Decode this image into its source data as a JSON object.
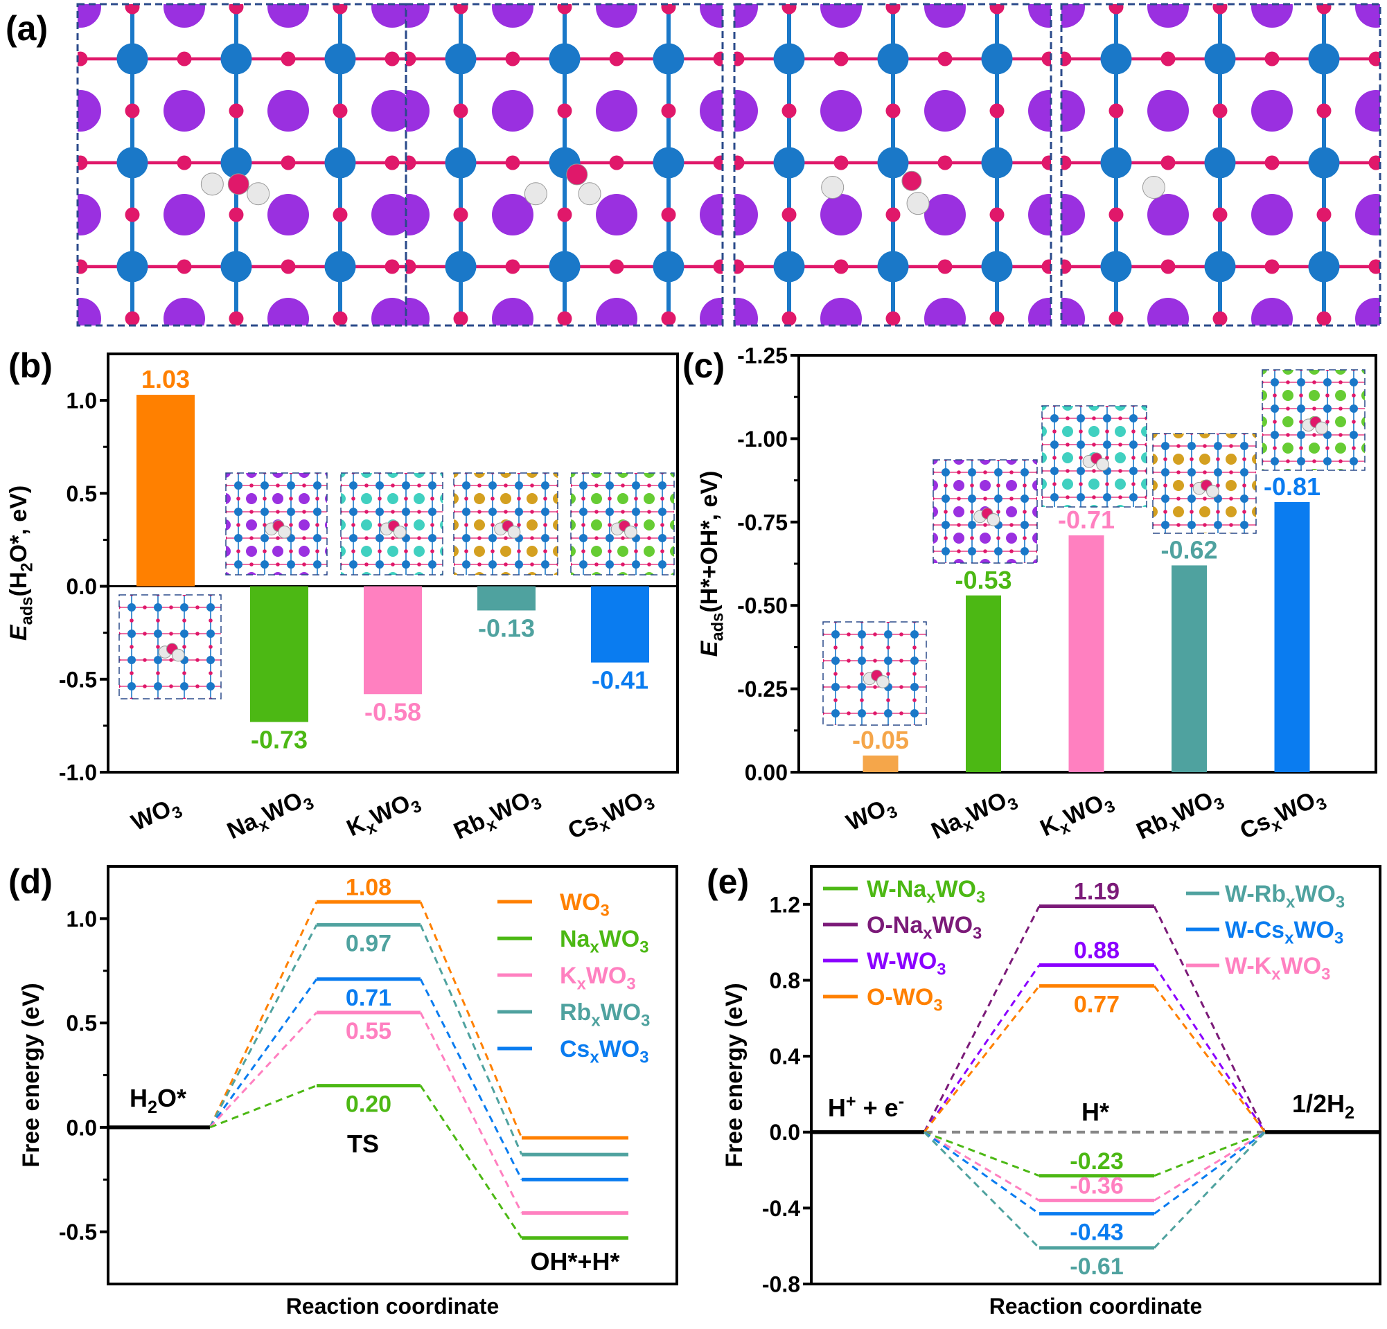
{
  "panel_labels": {
    "a": "(a)",
    "b": "(b)",
    "c": "(c)",
    "d": "(d)",
    "e": "(e)"
  },
  "colors": {
    "WO3": "#ff8000",
    "NaxWO3": "#4cb814",
    "KxWO3": "#ff80c0",
    "RbxWO3": "#4fa29f",
    "CsxWO3": "#0a7cf0",
    "WO3_light": "#f5a64a",
    "O_NaxWO3": "#7b1a78",
    "W_WO3": "#8a00ff",
    "zero_ref": "#888888",
    "W_atom": "#1a78c8",
    "O_atom": "#e0186a",
    "K_atom": "#9a30e0",
    "H_atom": "#e8e8e8",
    "Na_cation": "#9a30e0",
    "K_cation": "#40d0c0",
    "Rb_cation": "#d4a020",
    "Cs_cation": "#66cc33"
  },
  "structures_a": {
    "description_icons": [
      "lattice-frame-1",
      "lattice-frame-2",
      "lattice-frame-3",
      "lattice-frame-4"
    ]
  },
  "chart_data": [
    {
      "id": "b",
      "type": "bar",
      "categories": [
        "WO3",
        "NaxWO3",
        "KxWO3",
        "RbxWO3",
        "CsxWO3"
      ],
      "values": [
        1.03,
        -0.73,
        -0.58,
        -0.13,
        -0.41
      ],
      "value_labels": [
        "1.03",
        "-0.73",
        "-0.58",
        "-0.13",
        "-0.41"
      ],
      "ylabel": "Eads(H2O*, eV)",
      "ylim": [
        -1.0,
        1.25
      ],
      "yticks": [
        1.0,
        0.5,
        0.0,
        -0.5,
        -1.0
      ],
      "ytick_labels": [
        "1.0",
        "0.5",
        "0.0",
        "-0.5",
        "-1.0"
      ],
      "grid": false
    },
    {
      "id": "c",
      "type": "bar",
      "categories": [
        "WO3",
        "NaxWO3",
        "KxWO3",
        "RbxWO3",
        "CsxWO3"
      ],
      "values": [
        -0.05,
        -0.53,
        -0.71,
        -0.62,
        -0.81
      ],
      "value_labels": [
        "-0.05",
        "-0.53",
        "-0.71",
        "-0.62",
        "-0.81"
      ],
      "ylabel": "Eads(H*+OH*, eV)",
      "ylim": [
        0.0,
        -1.25
      ],
      "y_reversed": true,
      "yticks": [
        -1.25,
        -1.0,
        -0.75,
        -0.5,
        -0.25,
        0.0
      ],
      "ytick_labels": [
        "-1.25",
        "-1.00",
        "-0.75",
        "-0.50",
        "-0.25",
        "0.00"
      ],
      "grid": false
    },
    {
      "id": "d",
      "type": "line",
      "xlabel": "Reaction coordinate",
      "ylabel": "Free energy (eV)",
      "ylim": [
        -0.75,
        1.25
      ],
      "yticks": [
        1.0,
        0.5,
        0.0,
        -0.5
      ],
      "ytick_labels": [
        "1.0",
        "0.5",
        "0.0",
        "-0.5"
      ],
      "states": [
        "H2O*",
        "TS",
        "OH*+H*"
      ],
      "series": [
        {
          "name": "WO3",
          "values": [
            0,
            1.08,
            -0.05
          ],
          "label": "1.08"
        },
        {
          "name": "RbxWO3",
          "values": [
            0,
            0.97,
            -0.13
          ],
          "label": "0.97"
        },
        {
          "name": "CsxWO3",
          "values": [
            0,
            0.71,
            -0.25
          ],
          "label": "0.71"
        },
        {
          "name": "KxWO3",
          "values": [
            0,
            0.55,
            -0.41
          ],
          "label": "0.55"
        },
        {
          "name": "NaxWO3",
          "values": [
            0,
            0.2,
            -0.53
          ],
          "label": "0.20"
        }
      ],
      "legend": [
        "WO3",
        "NaxWO3",
        "KxWO3",
        "RbxWO3",
        "CsxWO3"
      ],
      "legend_position": "top-right"
    },
    {
      "id": "e",
      "type": "line",
      "xlabel": "Reaction coordinate",
      "ylabel": "Free energy (eV)",
      "ylim": [
        -0.8,
        1.4
      ],
      "yticks": [
        1.2,
        0.8,
        0.4,
        0.0,
        -0.4,
        -0.8
      ],
      "ytick_labels": [
        "1.2",
        "0.8",
        "0.4",
        "0.0",
        "-0.4",
        "-0.8"
      ],
      "states": [
        "H+ + e-",
        "H*",
        "1/2H2"
      ],
      "series": [
        {
          "name": "O-NaxWO3",
          "values": [
            0,
            1.19,
            0
          ],
          "label": "1.19"
        },
        {
          "name": "W-WO3",
          "values": [
            0,
            0.88,
            0
          ],
          "label": "0.88"
        },
        {
          "name": "O-WO3",
          "values": [
            0,
            0.77,
            0
          ],
          "label": "0.77"
        },
        {
          "name": "W-NaxWO3",
          "values": [
            0,
            -0.23,
            0
          ],
          "label": "-0.23"
        },
        {
          "name": "W-KxWO3",
          "values": [
            0,
            -0.36,
            0
          ],
          "label": "-0.36"
        },
        {
          "name": "W-CsxWO3",
          "values": [
            0,
            -0.43,
            0
          ],
          "label": "-0.43"
        },
        {
          "name": "W-RbxWO3",
          "values": [
            0,
            -0.61,
            0
          ],
          "label": "-0.61"
        }
      ],
      "legend_left": [
        "W-NaxWO3",
        "O-NaxWO3",
        "W-WO3",
        "O-WO3"
      ],
      "legend_right": [
        "W-RbxWO3",
        "W-CsxWO3",
        "W-KxWO3"
      ],
      "legend_position": "top-left and top-right"
    }
  ]
}
